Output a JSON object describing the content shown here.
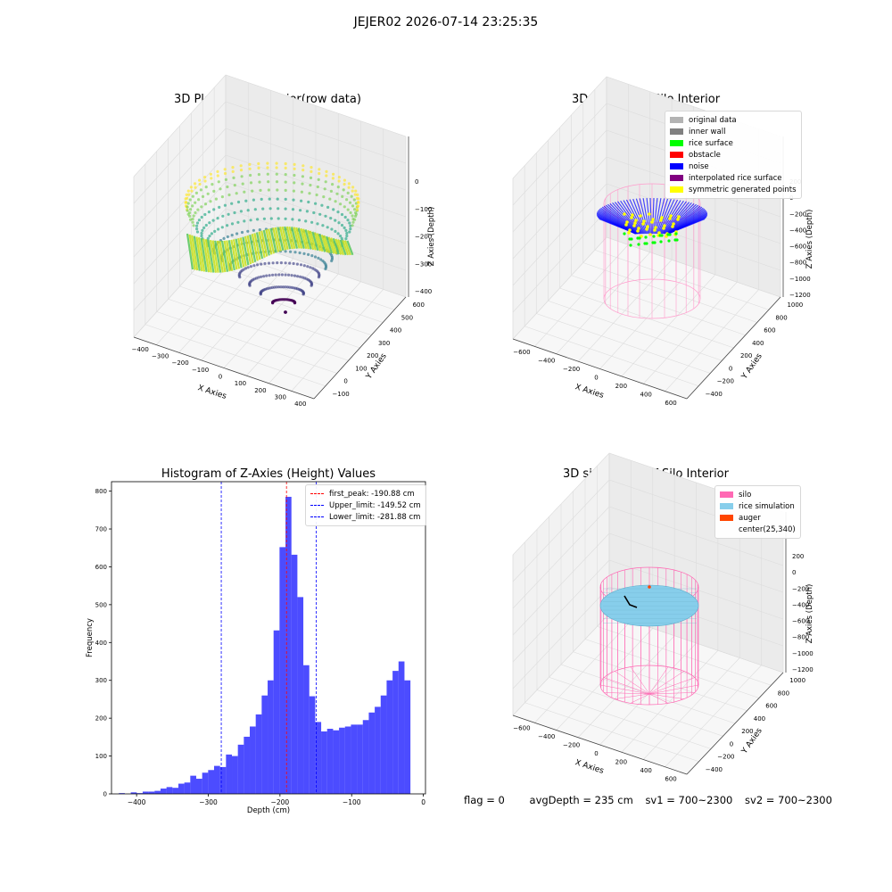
{
  "suptitle": "JEJER02 2026-07-14 23:25:35",
  "charts": [
    {
      "type": "scatter",
      "title": "3D Plot of Silo Interior(row data)",
      "xlabel": "X Axies",
      "ylabel": "Y Axies",
      "zlabel": "Z Axies (Depth)",
      "xticks": [
        "−400",
        "−300",
        "−200",
        "−100",
        "0",
        "100",
        "200",
        "300",
        "400"
      ],
      "yticks": [
        "−100",
        "0",
        "100",
        "200",
        "300",
        "400",
        "500",
        "600"
      ],
      "zticks": [
        "0",
        "−100",
        "−200",
        "−300",
        "−400"
      ],
      "colormap": "viridis"
    },
    {
      "type": "scatter",
      "title": "3D classify of Silo Interior",
      "xlabel": "X Axies",
      "ylabel": "Y Axies",
      "zlabel": "Z Axies (Depth)",
      "xticks": [
        "−600",
        "−400",
        "−200",
        "0",
        "200",
        "400",
        "600"
      ],
      "yticks": [
        "−400",
        "−200",
        "0",
        "200",
        "400",
        "600",
        "800",
        "1000"
      ],
      "zticks": [
        "200",
        "0",
        "−200",
        "−400",
        "−600",
        "−800",
        "−1000",
        "−1200"
      ],
      "legend": [
        {
          "label": "original data",
          "color": "#b3b3b3"
        },
        {
          "label": "inner wall",
          "color": "#808080"
        },
        {
          "label": "rice surface",
          "color": "#00ff00"
        },
        {
          "label": "obstacle",
          "color": "#ff0000"
        },
        {
          "label": "noise",
          "color": "#0000ff"
        },
        {
          "label": "interpolated rice surface",
          "color": "#800080"
        },
        {
          "label": "symmetric generated points",
          "color": "#ffff00"
        }
      ]
    },
    {
      "type": "bar",
      "title": "Histogram of Z-Axies (Height) Values",
      "xlabel": "Depth (cm)",
      "ylabel": "Frequency",
      "xlim": [
        -435,
        3
      ],
      "ylim": [
        0,
        825
      ],
      "xticks": [
        -400,
        -300,
        -200,
        -100,
        0
      ],
      "xtick_labels": [
        "−400",
        "−300",
        "−200",
        "−100",
        "0"
      ],
      "yticks": [
        0,
        100,
        200,
        300,
        400,
        500,
        600,
        700,
        800
      ],
      "bin_start": -424.7,
      "bin_width": 8.3,
      "values": [
        2,
        0,
        4,
        2,
        6,
        6,
        8,
        14,
        18,
        16,
        27,
        30,
        48,
        40,
        56,
        63,
        74,
        71,
        104,
        100,
        130,
        151,
        178,
        210,
        260,
        300,
        432,
        652,
        785,
        632,
        520,
        340,
        258,
        190,
        165,
        172,
        168,
        175,
        178,
        183,
        183,
        195,
        215,
        230,
        260,
        300,
        325,
        350,
        300
      ],
      "color": "#0000ff",
      "lines": [
        {
          "label": "first_peak: -190.88 cm",
          "x": -190.88,
          "color": "#ff0000"
        },
        {
          "label": "Upper_limit: -149.52 cm",
          "x": -149.52,
          "color": "#0000ff"
        },
        {
          "label": "Lower_limit: -281.88 cm",
          "x": -281.88,
          "color": "#0000ff"
        }
      ]
    },
    {
      "type": "scatter",
      "title": "3D simulation of Silo Interior",
      "xlabel": "X Axies",
      "ylabel": "Y Axies",
      "zlabel": "Z Axies (Depth)",
      "xticks": [
        "−600",
        "−400",
        "−200",
        "0",
        "200",
        "400",
        "600"
      ],
      "yticks": [
        "−400",
        "−200",
        "0",
        "200",
        "400",
        "600",
        "800",
        "1000"
      ],
      "zticks": [
        "200",
        "0",
        "−200",
        "−400",
        "−600",
        "−800",
        "−1000",
        "−1200"
      ],
      "legend": [
        {
          "label": "silo",
          "color": "#ff69b4"
        },
        {
          "label": "rice simulation",
          "color": "#87ceeb"
        },
        {
          "label": "auger",
          "color": "#ff4500"
        },
        {
          "label": "center(25,340)",
          "color": ""
        }
      ]
    }
  ],
  "status": {
    "flag": "flag = 0",
    "avg_depth": "avgDepth = 235 cm",
    "sv1": "sv1 = 700~2300",
    "sv2": "sv2 = 700~2300"
  }
}
